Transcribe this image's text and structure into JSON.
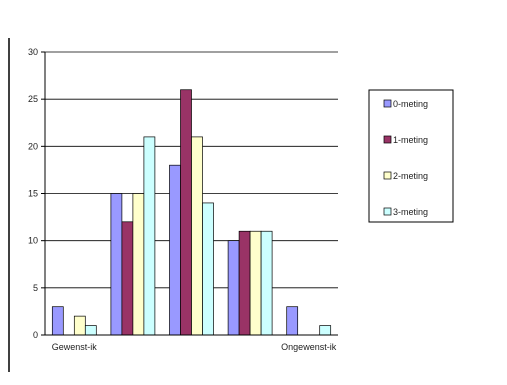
{
  "chart_data": {
    "type": "bar",
    "categories": [
      "Gewenst-ik",
      "",
      "",
      "",
      "Ongewenst-ik"
    ],
    "series": [
      {
        "name": "0-meting",
        "color": "#9999ff",
        "values": [
          3,
          15,
          18,
          10,
          3
        ]
      },
      {
        "name": "1-meting",
        "color": "#993366",
        "values": [
          0,
          12,
          26,
          11,
          0
        ]
      },
      {
        "name": "2-meting",
        "color": "#ffffcc",
        "values": [
          2,
          15,
          21,
          11,
          0
        ]
      },
      {
        "name": "3-meting",
        "color": "#ccffff",
        "values": [
          1,
          21,
          14,
          11,
          1
        ]
      }
    ],
    "ylim": [
      0,
      30
    ],
    "yticks": [
      0,
      5,
      10,
      15,
      20,
      25,
      30
    ],
    "grid": true,
    "legend_position": "right"
  }
}
